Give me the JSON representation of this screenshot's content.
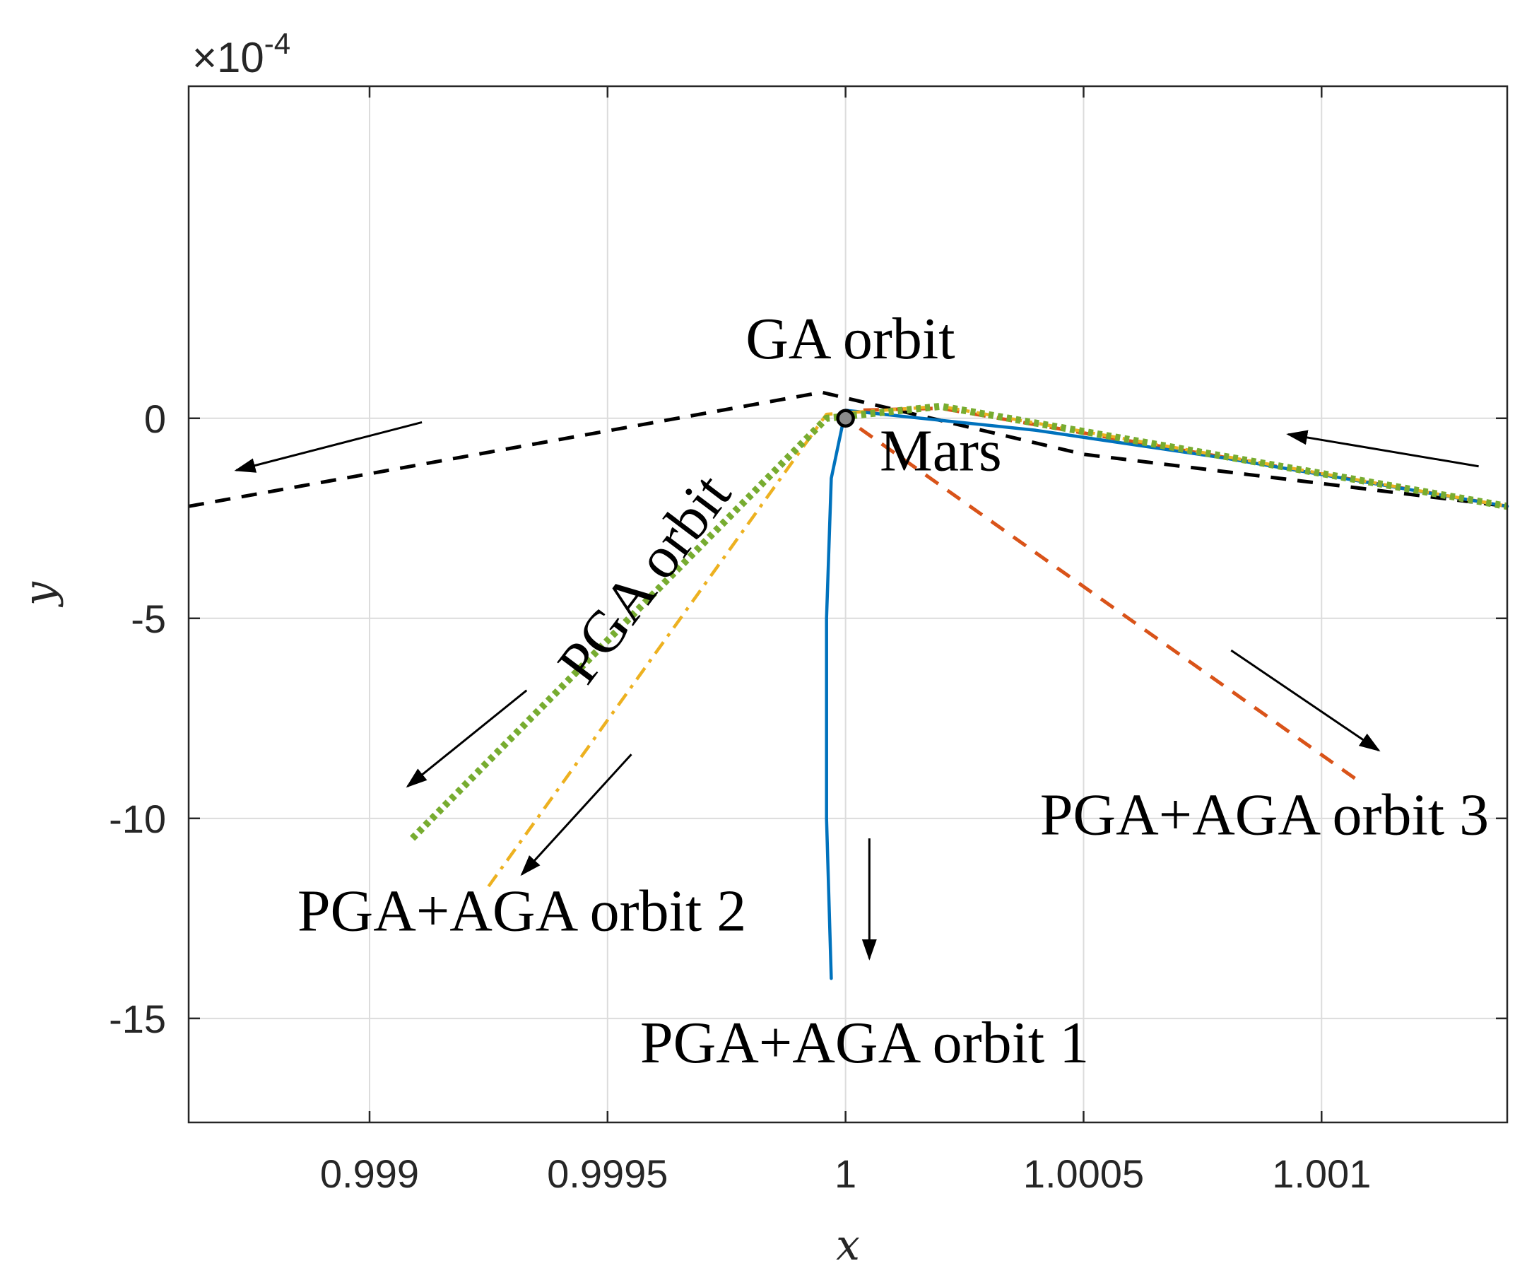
{
  "chart_data": {
    "type": "line",
    "title": "",
    "xlabel": "x",
    "ylabel": "y",
    "y_exponent": {
      "prefix": "×10",
      "power": "-4"
    },
    "xlim": [
      0.99862,
      1.00139
    ],
    "ylim": [
      -17.6,
      8.3
    ],
    "grid": true,
    "x_ticks": [
      {
        "value": 0.999,
        "label": "0.999"
      },
      {
        "value": 0.9995,
        "label": "0.9995"
      },
      {
        "value": 1.0,
        "label": "1"
      },
      {
        "value": 1.0005,
        "label": "1.0005"
      },
      {
        "value": 1.001,
        "label": "1.001"
      }
    ],
    "y_ticks": [
      {
        "value": 0,
        "label": "0"
      },
      {
        "value": -5,
        "label": "-5"
      },
      {
        "value": -10,
        "label": "-10"
      },
      {
        "value": -15,
        "label": "-15"
      }
    ],
    "mars": {
      "label": "Mars",
      "x": 1.0,
      "y": 0.0
    },
    "series": [
      {
        "name": "GA orbit",
        "color": "#000000",
        "style": "dashed",
        "x": [
          0.99862,
          0.99995,
          1.0005,
          1.00139
        ],
        "y": [
          -2.2,
          0.65,
          -0.9,
          -2.2
        ]
      },
      {
        "name": "PGA orbit",
        "color": "#77AC30",
        "style": "dotted",
        "x": [
          0.99909,
          0.99996,
          1.0002,
          1.00139
        ],
        "y": [
          -10.5,
          0.0,
          0.3,
          -2.2
        ]
      },
      {
        "name": "PGA+AGA orbit 1",
        "color": "#0072BD",
        "style": "solid",
        "x": [
          0.99997,
          0.99996,
          0.99996,
          0.99997,
          1.0,
          1.0004,
          1.0008,
          1.00139
        ],
        "y": [
          -14.0,
          -10.0,
          -5.0,
          -1.5,
          0.2,
          -0.3,
          -1.0,
          -2.2
        ]
      },
      {
        "name": "PGA+AGA orbit 2",
        "color": "#EDB120",
        "style": "dashdot",
        "x": [
          0.99925,
          0.99996,
          1.0002,
          1.00139
        ],
        "y": [
          -11.7,
          0.1,
          0.3,
          -2.2
        ]
      },
      {
        "name": "PGA+AGA orbit 3",
        "color": "#D95319",
        "style": "dashed",
        "x": [
          1.00107,
          1.0,
          1.00002,
          1.0002,
          1.00139
        ],
        "y": [
          -9.0,
          0.0,
          0.2,
          0.25,
          -2.2
        ]
      }
    ],
    "annotations": [
      {
        "text": "GA orbit",
        "x": 1.00001,
        "y": 1.5,
        "anchor": "middle",
        "rotate": 0
      },
      {
        "text": "Mars",
        "x": 1.0002,
        "y": -1.3,
        "anchor": "middle",
        "rotate": 0
      },
      {
        "text": "PGA orbit",
        "x": 0.99961,
        "y": -4.3,
        "anchor": "middle",
        "rotate": -53
      },
      {
        "text": "PGA+AGA orbit 1",
        "x": 1.00004,
        "y": -16.1,
        "anchor": "middle",
        "rotate": 0
      },
      {
        "text": "PGA+AGA orbit 2",
        "x": 0.99932,
        "y": -12.8,
        "anchor": "middle",
        "rotate": 0
      },
      {
        "text": "PGA+AGA orbit 3",
        "x": 1.00088,
        "y": -10.4,
        "anchor": "middle",
        "rotate": 0
      }
    ],
    "arrows": [
      {
        "from": [
          0.99911,
          -0.1
        ],
        "to": [
          0.99872,
          -1.3
        ]
      },
      {
        "from": [
          1.00133,
          -1.2
        ],
        "to": [
          1.00093,
          -0.4
        ]
      },
      {
        "from": [
          0.99933,
          -6.8
        ],
        "to": [
          0.99908,
          -9.2
        ]
      },
      {
        "from": [
          0.99955,
          -8.4
        ],
        "to": [
          0.99932,
          -11.4
        ]
      },
      {
        "from": [
          1.00005,
          -10.5
        ],
        "to": [
          1.00005,
          -13.5
        ]
      },
      {
        "from": [
          1.00081,
          -5.8
        ],
        "to": [
          1.00112,
          -8.3
        ]
      }
    ]
  }
}
